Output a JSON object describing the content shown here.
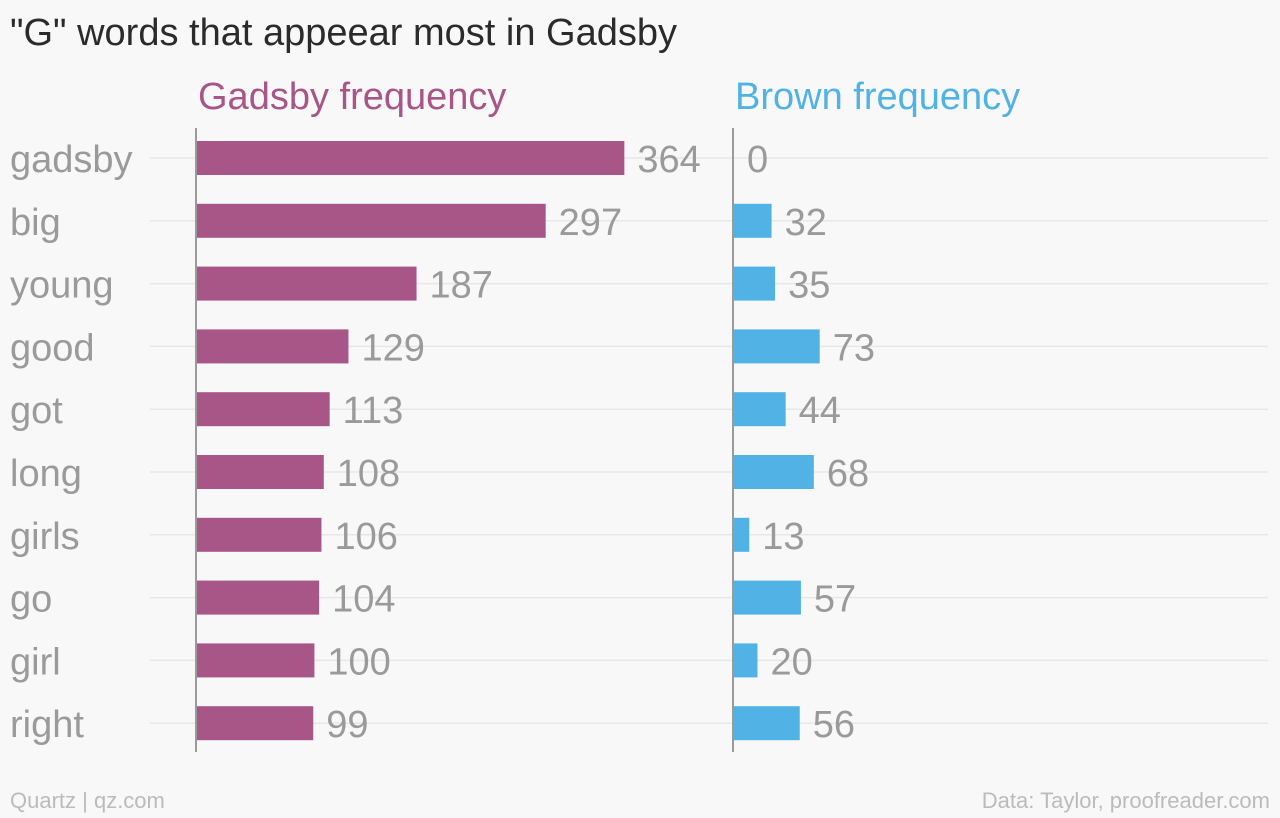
{
  "chart_data": {
    "type": "bar",
    "orientation": "horizontal",
    "title": "\"G\" words that appeear most in Gadsby",
    "categories": [
      "gadsby",
      "big",
      "young",
      "good",
      "got",
      "long",
      "girls",
      "go",
      "girl",
      "right"
    ],
    "series": [
      {
        "name": "Gadsby frequency",
        "color": "#a85587",
        "values": [
          364,
          297,
          187,
          129,
          113,
          108,
          106,
          104,
          100,
          99
        ]
      },
      {
        "name": "Brown frequency",
        "color": "#51b2e5",
        "values": [
          0,
          32,
          35,
          73,
          44,
          68,
          13,
          57,
          20,
          56
        ]
      }
    ],
    "xlabel": "",
    "ylabel": "",
    "grid": true,
    "legend": "column headers above each panel"
  },
  "footer": {
    "credit": "Quartz | qz.com",
    "source": "Data: Taylor, proofreader.com"
  }
}
